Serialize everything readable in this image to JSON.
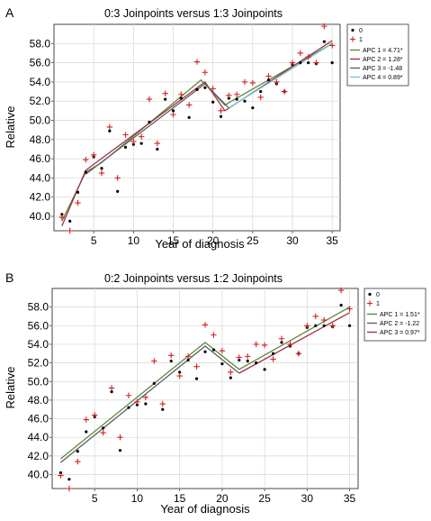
{
  "chart_data": [
    {
      "panel": "A",
      "title": "0:3 Joinpoints versus 1:3 Joinpoints",
      "type": "scatter",
      "xlabel": "Year of diagnosis",
      "ylabel": "Relative",
      "xlim": [
        0,
        36
      ],
      "ylim": [
        38.5,
        60
      ],
      "xticks": [
        5,
        10,
        15,
        20,
        25,
        30,
        35
      ],
      "yticks": [
        40.0,
        42.0,
        44.0,
        46.0,
        48.0,
        50.0,
        52.0,
        54.0,
        56.0,
        58.0
      ],
      "grid": true,
      "legend_placement": "top-right outside",
      "legend": {
        "markers": [
          {
            "symbol": "•",
            "label": "0",
            "color": "#000000"
          },
          {
            "symbol": "+",
            "label": "1",
            "color": "#d42020"
          }
        ],
        "lines": [
          {
            "label": "APC 1 = 4.71*",
            "color": "#5a8a3c"
          },
          {
            "label": "APC 2 = 1.28*",
            "color": "#a0304a"
          },
          {
            "label": "APC 3 = -1.48",
            "color": "#606060"
          },
          {
            "label": "APC 4 = 0.89*",
            "color": "#6ec6d6"
          }
        ]
      },
      "series": [
        {
          "name": "0",
          "marker": "dot",
          "color": "#000000",
          "x": [
            1,
            2,
            3,
            4,
            5,
            6,
            7,
            8,
            9,
            10,
            11,
            12,
            13,
            14,
            15,
            16,
            17,
            18,
            19,
            20,
            21,
            22,
            23,
            24,
            25,
            26,
            27,
            28,
            29,
            30,
            31,
            32,
            33,
            34,
            35
          ],
          "y": [
            40.2,
            39.5,
            42.5,
            44.6,
            46.2,
            45.0,
            48.9,
            42.6,
            47.2,
            47.5,
            47.6,
            49.8,
            47.0,
            52.2,
            51.0,
            52.3,
            50.3,
            53.2,
            53.4,
            51.9,
            50.4,
            52.3,
            52.2,
            52.0,
            51.3,
            53.0,
            54.2,
            53.8,
            53.0,
            55.8,
            56.0,
            56.0,
            55.9,
            58.2,
            56.0
          ]
        },
        {
          "name": "1",
          "marker": "plus",
          "color": "#d42020",
          "x": [
            1,
            2,
            3,
            4,
            5,
            6,
            7,
            8,
            9,
            10,
            11,
            12,
            13,
            14,
            15,
            16,
            17,
            18,
            19,
            20,
            21,
            22,
            23,
            24,
            25,
            26,
            27,
            28,
            29,
            30,
            31,
            32,
            33,
            34,
            35
          ],
          "y": [
            39.9,
            38.5,
            41.4,
            45.9,
            46.4,
            44.5,
            49.3,
            44.0,
            48.5,
            47.8,
            48.3,
            52.2,
            47.6,
            52.8,
            50.6,
            52.7,
            51.6,
            56.1,
            55.0,
            53.3,
            51.0,
            52.6,
            52.7,
            54.0,
            53.9,
            52.4,
            54.6,
            54.0,
            53.0,
            56.0,
            57.0,
            56.6,
            56.0,
            59.8,
            57.8
          ]
        }
      ],
      "fits": [
        {
          "label": "APC 1 = 4.71*",
          "color": "#5a8a3c",
          "x": [
            1,
            4,
            6,
            18.5,
            21.5,
            35
          ],
          "y": [
            39.5,
            44.6,
            45.6,
            54.2,
            51.6,
            58.0
          ]
        },
        {
          "label": "APC 2 = 1.28*",
          "color": "#a0304a",
          "x": [
            1,
            4,
            19,
            21.5,
            35
          ],
          "y": [
            39.0,
            44.8,
            54.0,
            51.0,
            58.3
          ]
        },
        {
          "label": "APC 3 = -1.48",
          "color": "#606060",
          "x": [
            4,
            19,
            22
          ],
          "y": [
            44.4,
            53.8,
            51.3
          ]
        },
        {
          "label": "APC 4 = 0.89*",
          "color": "#6ec6d6",
          "x": [
            22,
            35
          ],
          "y": [
            51.3,
            58.0
          ]
        }
      ]
    },
    {
      "panel": "B",
      "title": "0:2 Joinpoints versus 1:2 Joinpoints",
      "type": "scatter",
      "xlabel": "Year of diagnosis",
      "ylabel": "Relative",
      "xlim": [
        0,
        36
      ],
      "ylim": [
        38.5,
        60
      ],
      "xticks": [
        5,
        10,
        15,
        20,
        25,
        30,
        35
      ],
      "yticks": [
        40.0,
        42.0,
        44.0,
        46.0,
        48.0,
        50.0,
        52.0,
        54.0,
        56.0,
        58.0
      ],
      "grid": true,
      "legend_placement": "top-right outside",
      "legend": {
        "markers": [
          {
            "symbol": "•",
            "label": "0",
            "color": "#000000"
          },
          {
            "symbol": "+",
            "label": "1",
            "color": "#d42020"
          }
        ],
        "lines": [
          {
            "label": "APC 1 = 1.51*",
            "color": "#5a8a3c"
          },
          {
            "label": "APC 2 = -1.22",
            "color": "#606060"
          },
          {
            "label": "APC 3 = 0.97*",
            "color": "#a0304a"
          }
        ]
      },
      "series": [
        {
          "name": "0",
          "marker": "dot",
          "color": "#000000",
          "x": [
            1,
            2,
            3,
            4,
            5,
            6,
            7,
            8,
            9,
            10,
            11,
            12,
            13,
            14,
            15,
            16,
            17,
            18,
            19,
            20,
            21,
            22,
            23,
            24,
            25,
            26,
            27,
            28,
            29,
            30,
            31,
            32,
            33,
            34,
            35
          ],
          "y": [
            40.2,
            39.5,
            42.5,
            44.6,
            46.2,
            45.0,
            48.9,
            42.6,
            47.2,
            47.5,
            47.6,
            49.8,
            47.0,
            52.2,
            51.0,
            52.3,
            50.3,
            53.2,
            53.4,
            51.9,
            50.4,
            52.3,
            52.2,
            52.0,
            51.3,
            53.0,
            54.2,
            53.8,
            53.0,
            55.8,
            56.0,
            56.0,
            55.9,
            58.2,
            56.0
          ]
        },
        {
          "name": "1",
          "marker": "plus",
          "color": "#d42020",
          "x": [
            1,
            2,
            3,
            4,
            5,
            6,
            7,
            8,
            9,
            10,
            11,
            12,
            13,
            14,
            15,
            16,
            17,
            18,
            19,
            20,
            21,
            22,
            23,
            24,
            25,
            26,
            27,
            28,
            29,
            30,
            31,
            32,
            33,
            34,
            35
          ],
          "y": [
            39.9,
            38.5,
            41.4,
            45.9,
            46.4,
            44.5,
            49.3,
            44.0,
            48.5,
            47.8,
            48.3,
            52.2,
            47.6,
            52.8,
            50.6,
            52.7,
            51.6,
            56.1,
            55.0,
            53.3,
            51.0,
            52.6,
            52.7,
            54.0,
            53.9,
            52.4,
            54.6,
            54.0,
            53.0,
            56.0,
            57.0,
            56.6,
            56.0,
            59.8,
            57.8
          ]
        }
      ],
      "fits": [
        {
          "label": "APC 1 = 1.51*",
          "color": "#5a8a3c",
          "x": [
            1,
            18,
            22,
            35
          ],
          "y": [
            41.7,
            54.2,
            51.3,
            58.0
          ]
        },
        {
          "label": "APC 2 = -1.22",
          "color": "#606060",
          "x": [
            1,
            18,
            22
          ],
          "y": [
            41.3,
            53.8,
            50.9
          ]
        },
        {
          "label": "APC 3 = 0.97*",
          "color": "#a0304a",
          "x": [
            22,
            35
          ],
          "y": [
            50.9,
            57.4
          ]
        }
      ]
    }
  ]
}
